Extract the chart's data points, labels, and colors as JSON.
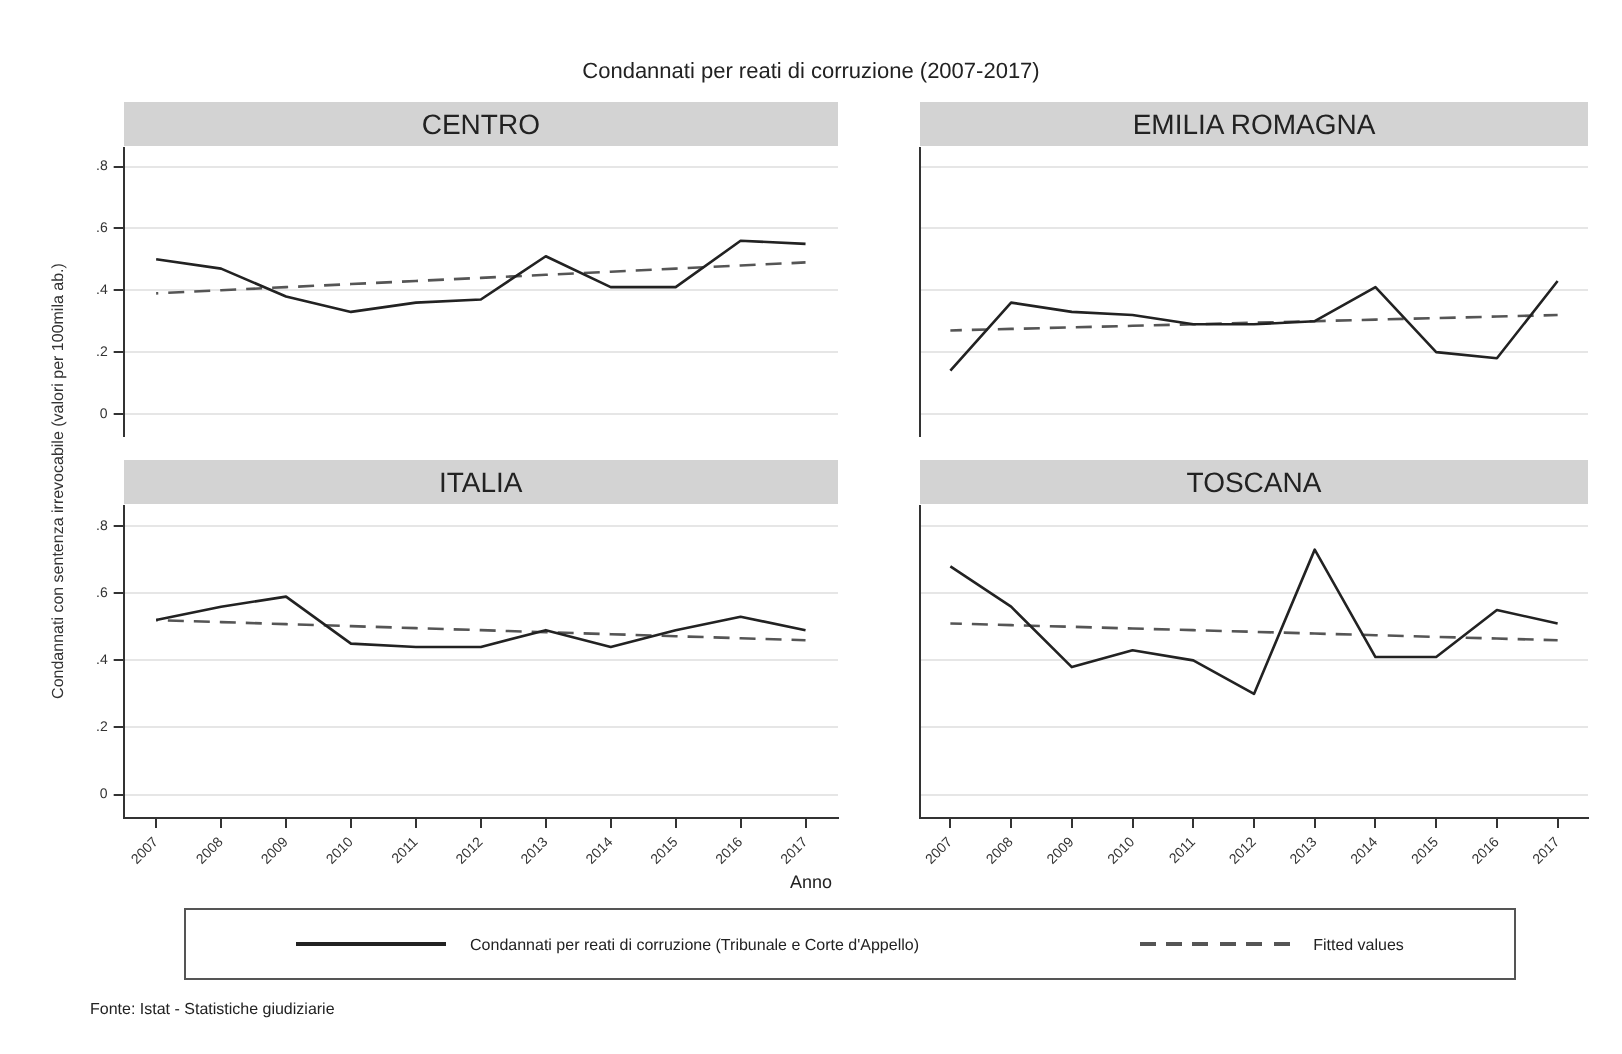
{
  "chart_data": [
    {
      "type": "line",
      "title": "Condannati per reati di corruzione (2007-2017)",
      "subtitle": "CENTRO",
      "ylabel": "Condannati con sentenza irrevocabile (valori per 100mila ab.)",
      "xlabel": "Anno",
      "legend": "bottom",
      "annotations": [
        "Fonte: Istat - Statistiche giudiziarie"
      ],
      "tick_labels": "y",
      "grid": "y",
      "marker": "none",
      "categories": [
        "2007",
        "2008",
        "2009",
        "2010",
        "2011",
        "2012",
        "2013",
        "2014",
        "2015",
        "2016",
        "2017"
      ],
      "ylim": [
        -0.07,
        0.86
      ],
      "yticks": [
        {
          "value": 0,
          "label": "0"
        },
        {
          "value": 0.2,
          "label": ".2"
        },
        {
          "value": 0.4,
          "label": ".4"
        },
        {
          "value": 0.6,
          "label": ".6"
        },
        {
          "value": 0.8,
          "label": ".8"
        }
      ],
      "series": [
        {
          "name": "Condannati per reati di corruzione (Tribunale e Corte d'Appello)",
          "color": "#222222",
          "line_style": "solid",
          "values": [
            0.5,
            0.47,
            0.38,
            0.33,
            0.36,
            0.37,
            0.51,
            0.41,
            0.41,
            0.56,
            0.55
          ]
        },
        {
          "name": "Fitted values",
          "color": "#555555",
          "line_style": "dashed",
          "values": [
            0.39,
            0.4,
            0.41,
            0.42,
            0.43,
            0.44,
            0.45,
            0.46,
            0.47,
            0.48,
            0.49
          ]
        }
      ]
    },
    {
      "type": "line",
      "subtitle": "EMILIA ROMAGNA",
      "tick_labels": false,
      "grid": "y",
      "marker": "none",
      "categories": [
        "2007",
        "2008",
        "2009",
        "2010",
        "2011",
        "2012",
        "2013",
        "2014",
        "2015",
        "2016",
        "2017"
      ],
      "ylim": [
        -0.07,
        0.86
      ],
      "yticks": [
        {
          "value": 0,
          "label": null
        },
        {
          "value": 0.2,
          "label": null
        },
        {
          "value": 0.4,
          "label": null
        },
        {
          "value": 0.6,
          "label": null
        },
        {
          "value": 0.8,
          "label": null
        }
      ],
      "series": [
        {
          "color": "#222222",
          "line_style": "solid",
          "values": [
            0.14,
            0.36,
            0.33,
            0.32,
            0.29,
            0.29,
            0.3,
            0.41,
            0.2,
            0.18,
            0.43
          ]
        },
        {
          "color": "#555555",
          "line_style": "dashed",
          "values": [
            0.27,
            0.275,
            0.28,
            0.285,
            0.29,
            0.295,
            0.3,
            0.305,
            0.31,
            0.315,
            0.32
          ]
        }
      ]
    },
    {
      "type": "line",
      "subtitle": "ITALIA",
      "grid": "y",
      "marker": "none",
      "categories": [
        "2007",
        "2008",
        "2009",
        "2010",
        "2011",
        "2012",
        "2013",
        "2014",
        "2015",
        "2016",
        "2017"
      ],
      "ylim": [
        -0.07,
        0.86
      ],
      "yticks": [
        {
          "value": 0,
          "label": "0"
        },
        {
          "value": 0.2,
          "label": ".2"
        },
        {
          "value": 0.4,
          "label": ".4"
        },
        {
          "value": 0.6,
          "label": ".6"
        },
        {
          "value": 0.8,
          "label": ".8"
        }
      ],
      "series": [
        {
          "color": "#222222",
          "line_style": "solid",
          "values": [
            0.52,
            0.56,
            0.59,
            0.45,
            0.44,
            0.44,
            0.49,
            0.44,
            0.49,
            0.53,
            0.49
          ]
        },
        {
          "color": "#555555",
          "line_style": "dashed",
          "values": [
            0.52,
            0.514,
            0.508,
            0.502,
            0.496,
            0.49,
            0.484,
            0.478,
            0.472,
            0.466,
            0.46
          ]
        }
      ]
    },
    {
      "type": "line",
      "subtitle": "TOSCANA",
      "tick_labels": "x",
      "grid": "y",
      "marker": "none",
      "categories": [
        "2007",
        "2008",
        "2009",
        "2010",
        "2011",
        "2012",
        "2013",
        "2014",
        "2015",
        "2016",
        "2017"
      ],
      "ylim": [
        -0.07,
        0.86
      ],
      "yticks": [
        {
          "value": 0,
          "label": null
        },
        {
          "value": 0.2,
          "label": null
        },
        {
          "value": 0.4,
          "label": null
        },
        {
          "value": 0.6,
          "label": null
        },
        {
          "value": 0.8,
          "label": null
        }
      ],
      "series": [
        {
          "color": "#222222",
          "line_style": "solid",
          "values": [
            0.68,
            0.56,
            0.38,
            0.43,
            0.4,
            0.3,
            0.73,
            0.41,
            0.41,
            0.55,
            0.51
          ]
        },
        {
          "color": "#555555",
          "line_style": "dashed",
          "values": [
            0.51,
            0.505,
            0.5,
            0.495,
            0.49,
            0.485,
            0.48,
            0.475,
            0.47,
            0.465,
            0.46
          ]
        }
      ]
    }
  ]
}
